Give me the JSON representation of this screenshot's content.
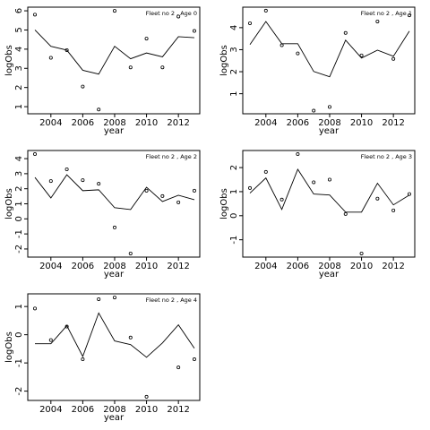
{
  "chart_data": [
    {
      "type": "line",
      "title": "Fleet no 2 , Age 0",
      "xlabel": "year",
      "ylabel": "logObs",
      "x": [
        2003,
        2004,
        2005,
        2006,
        2007,
        2008,
        2009,
        2010,
        2011,
        2012,
        2013
      ],
      "series": [
        {
          "mode": "markers",
          "color": "#000000",
          "values": [
            5.8,
            3.55,
            3.95,
            2.05,
            0.85,
            6.0,
            3.05,
            4.55,
            3.05,
            5.7,
            4.95
          ]
        },
        {
          "mode": "line",
          "color": "#000000",
          "values": [
            5.0,
            4.15,
            3.95,
            2.9,
            2.7,
            4.15,
            3.5,
            3.8,
            3.6,
            4.65,
            4.6
          ]
        }
      ],
      "xlim": [
        2002.55,
        2013.34
      ],
      "ylim": [
        0.63,
        6.19
      ],
      "xticks": [
        2004,
        2006,
        2008,
        2010,
        2012
      ],
      "yticks": [
        1,
        2,
        3,
        4,
        5,
        6
      ]
    },
    {
      "type": "line",
      "title": "Fleet no 2 , Age 1",
      "xlabel": "year",
      "ylabel": "logObs",
      "x": [
        2003,
        2004,
        2005,
        2006,
        2007,
        2008,
        2009,
        2010,
        2011,
        2012,
        2013
      ],
      "series": [
        {
          "mode": "markers",
          "color": "#000000",
          "values": [
            4.2,
            4.77,
            3.2,
            2.83,
            0.23,
            0.4,
            3.76,
            2.74,
            4.28,
            2.58,
            4.56
          ]
        },
        {
          "mode": "line",
          "color": "#000000",
          "values": [
            3.23,
            4.28,
            3.27,
            3.27,
            2.01,
            1.77,
            3.43,
            2.62,
            2.98,
            2.7,
            3.84
          ]
        }
      ],
      "xlim": [
        2002.55,
        2013.34
      ],
      "ylim": [
        0.09,
        4.93
      ],
      "xticks": [
        2004,
        2006,
        2008,
        2010,
        2012
      ],
      "yticks": [
        1,
        2,
        3,
        4
      ]
    },
    {
      "type": "line",
      "title": "Fleet no 2 , Age 2",
      "xlabel": "year",
      "ylabel": "logObs",
      "x": [
        2003,
        2004,
        2005,
        2006,
        2007,
        2008,
        2009,
        2010,
        2011,
        2012,
        2013
      ],
      "series": [
        {
          "mode": "markers",
          "color": "#000000",
          "values": [
            4.3,
            2.51,
            3.29,
            2.57,
            2.33,
            -0.57,
            -2.3,
            1.87,
            1.51,
            1.1,
            1.87
          ]
        },
        {
          "mode": "line",
          "color": "#000000",
          "values": [
            2.75,
            1.39,
            2.93,
            1.87,
            1.93,
            0.74,
            0.62,
            2.1,
            1.15,
            1.57,
            1.27
          ]
        }
      ],
      "xlim": [
        2002.55,
        2013.34
      ],
      "ylim": [
        -2.54,
        4.54
      ],
      "xticks": [
        2004,
        2006,
        2008,
        2010,
        2012
      ],
      "yticks": [
        -2,
        -1,
        0,
        1,
        2,
        3,
        4
      ]
    },
    {
      "type": "line",
      "title": "Fleet no 2 , Age 3",
      "xlabel": "year",
      "ylabel": "logObs",
      "x": [
        2003,
        2004,
        2005,
        2006,
        2007,
        2008,
        2009,
        2010,
        2011,
        2012,
        2013
      ],
      "series": [
        {
          "mode": "markers",
          "color": "#000000",
          "values": [
            1.15,
            1.82,
            0.67,
            2.56,
            1.39,
            1.5,
            0.07,
            -1.57,
            0.71,
            0.22,
            0.9
          ]
        },
        {
          "mode": "line",
          "color": "#000000",
          "values": [
            0.94,
            1.57,
            0.26,
            1.93,
            0.9,
            0.86,
            0.15,
            0.15,
            1.35,
            0.45,
            0.86
          ]
        }
      ],
      "xlim": [
        2002.55,
        2013.34
      ],
      "ylim": [
        -1.72,
        2.71
      ],
      "xticks": [
        2004,
        2006,
        2008,
        2010,
        2012
      ],
      "yticks": [
        -1,
        0,
        1,
        2
      ]
    },
    {
      "type": "line",
      "title": "Fleet no 2 , Age 4",
      "xlabel": "year",
      "ylabel": "logObs",
      "x": [
        2003,
        2004,
        2005,
        2006,
        2007,
        2008,
        2009,
        2010,
        2011,
        2012,
        2013
      ],
      "series": [
        {
          "mode": "markers",
          "color": "#000000",
          "values": [
            0.93,
            -0.19,
            0.29,
            -0.87,
            1.26,
            1.32,
            -0.1,
            -2.2,
            null,
            -1.16,
            -0.87
          ]
        },
        {
          "mode": "line",
          "color": "#000000",
          "values": [
            -0.32,
            -0.32,
            0.32,
            -0.77,
            0.77,
            -0.22,
            -0.35,
            -0.8,
            -0.29,
            0.35,
            -0.48
          ]
        }
      ],
      "xlim": [
        2002.55,
        2013.34
      ],
      "ylim": [
        -2.33,
        1.45
      ],
      "xticks": [
        2004,
        2006,
        2008,
        2010,
        2012
      ],
      "yticks": [
        -2,
        -1,
        0,
        1
      ]
    }
  ]
}
